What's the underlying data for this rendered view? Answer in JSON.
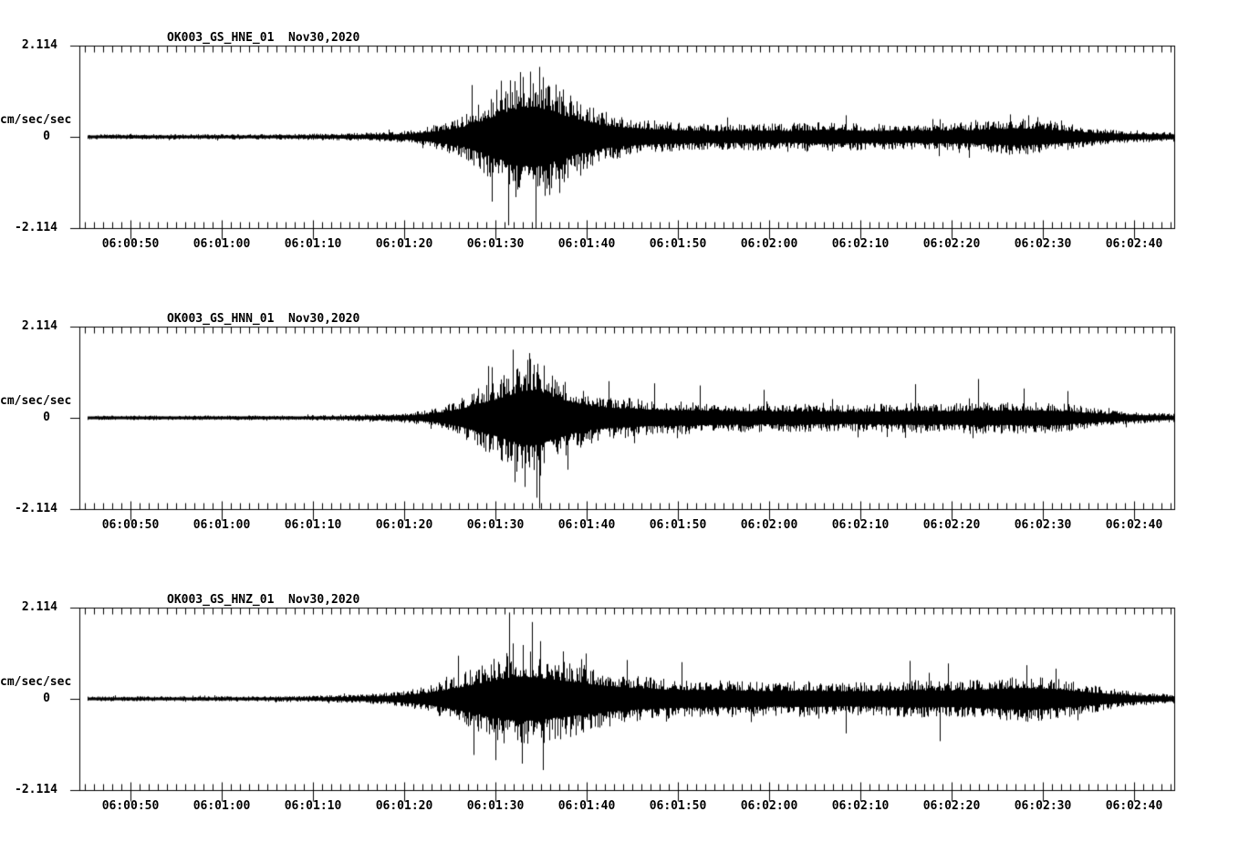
{
  "page": {
    "background": "#ffffff",
    "trace_color": "#000000",
    "axis_color": "#000000"
  },
  "chart_data": [
    {
      "type": "line",
      "title": "OK003_GS_HNE_01  Nov30,2020",
      "ylabel": "cm/sec/sec",
      "ytick_labels": [
        "2.114",
        "0",
        "-2.114"
      ],
      "ylim": [
        -2.114,
        2.114
      ],
      "x_start": "06:00:44",
      "x_end": "06:02:44",
      "x_minor_tick_sec": 1,
      "x_major_tick_sec": 10,
      "xtick_labels": [
        "06:00:50",
        "06:01:00",
        "06:01:10",
        "06:01:20",
        "06:01:30",
        "06:01:40",
        "06:01:50",
        "06:02:00",
        "06:02:10",
        "06:02:20",
        "06:02:30",
        "06:02:40"
      ],
      "seed": 101,
      "envelope": [
        [
          0,
          0.06
        ],
        [
          22,
          0.065
        ],
        [
          28,
          0.08
        ],
        [
          32,
          0.1
        ],
        [
          36,
          0.14
        ],
        [
          39,
          0.28
        ],
        [
          42,
          0.5
        ],
        [
          44,
          0.8
        ],
        [
          46,
          1.15
        ],
        [
          48,
          1.45
        ],
        [
          50,
          1.55
        ],
        [
          51.5,
          1.35
        ],
        [
          53,
          1.1
        ],
        [
          55,
          0.85
        ],
        [
          57,
          0.62
        ],
        [
          59,
          0.5
        ],
        [
          62,
          0.4
        ],
        [
          66,
          0.33
        ],
        [
          70,
          0.3
        ],
        [
          74,
          0.32
        ],
        [
          78,
          0.3
        ],
        [
          82,
          0.36
        ],
        [
          85,
          0.32
        ],
        [
          89,
          0.3
        ],
        [
          93,
          0.31
        ],
        [
          97,
          0.34
        ],
        [
          100,
          0.38
        ],
        [
          103,
          0.44
        ],
        [
          105,
          0.4
        ],
        [
          108,
          0.32
        ],
        [
          110,
          0.24
        ],
        [
          113,
          0.17
        ],
        [
          116,
          0.13
        ],
        [
          120,
          0.11
        ]
      ],
      "spikes": [
        [
          47,
          -2.05
        ],
        [
          50,
          -2.114
        ],
        [
          50.4,
          1.62
        ],
        [
          48.3,
          1.5
        ],
        [
          45.2,
          -1.5
        ],
        [
          52.6,
          -1.3
        ],
        [
          43,
          1.2
        ],
        [
          46.2,
          1.3
        ],
        [
          84,
          0.5
        ],
        [
          102,
          0.52
        ],
        [
          104,
          0.5
        ],
        [
          71,
          0.45
        ]
      ]
    },
    {
      "type": "line",
      "title": "OK003_GS_HNN_01  Nov30,2020",
      "ylabel": "cm/sec/sec",
      "ytick_labels": [
        "2.114",
        "0",
        "-2.114"
      ],
      "ylim": [
        -2.114,
        2.114
      ],
      "x_start": "06:00:44",
      "x_end": "06:02:44",
      "x_minor_tick_sec": 1,
      "x_major_tick_sec": 10,
      "xtick_labels": [
        "06:00:50",
        "06:01:00",
        "06:01:10",
        "06:01:20",
        "06:01:30",
        "06:01:40",
        "06:01:50",
        "06:02:00",
        "06:02:10",
        "06:02:20",
        "06:02:30",
        "06:02:40"
      ],
      "seed": 202,
      "envelope": [
        [
          0,
          0.05
        ],
        [
          24,
          0.055
        ],
        [
          29,
          0.07
        ],
        [
          33,
          0.09
        ],
        [
          36,
          0.12
        ],
        [
          39,
          0.22
        ],
        [
          41,
          0.38
        ],
        [
          43,
          0.6
        ],
        [
          45,
          0.85
        ],
        [
          47,
          1.15
        ],
        [
          49,
          1.4
        ],
        [
          50.5,
          1.35
        ],
        [
          52,
          1.05
        ],
        [
          54,
          0.8
        ],
        [
          56,
          0.62
        ],
        [
          58,
          0.52
        ],
        [
          61,
          0.45
        ],
        [
          64,
          0.4
        ],
        [
          68,
          0.37
        ],
        [
          72,
          0.35
        ],
        [
          76,
          0.33
        ],
        [
          80,
          0.33
        ],
        [
          84,
          0.31
        ],
        [
          88,
          0.33
        ],
        [
          92,
          0.36
        ],
        [
          95,
          0.33
        ],
        [
          98,
          0.38
        ],
        [
          101,
          0.36
        ],
        [
          104,
          0.38
        ],
        [
          107,
          0.36
        ],
        [
          109,
          0.3
        ],
        [
          111,
          0.24
        ],
        [
          114,
          0.17
        ],
        [
          117,
          0.12
        ],
        [
          120,
          0.1
        ]
      ],
      "spikes": [
        [
          47.5,
          1.58
        ],
        [
          49.3,
          1.5
        ],
        [
          50.1,
          -1.85
        ],
        [
          50.4,
          -2.1
        ],
        [
          48.8,
          -1.6
        ],
        [
          44.8,
          1.2
        ],
        [
          53.5,
          -1.2
        ],
        [
          58,
          0.85
        ],
        [
          63,
          0.8
        ],
        [
          68,
          0.75
        ],
        [
          75,
          0.65
        ],
        [
          91.6,
          0.78
        ],
        [
          98.5,
          0.9
        ],
        [
          103.5,
          0.68
        ],
        [
          108.3,
          0.62
        ]
      ]
    },
    {
      "type": "line",
      "title": "OK003_GS_HNZ_01  Nov30,2020",
      "ylabel": "cm/sec/sec",
      "ytick_labels": [
        "2.114",
        "0",
        "-2.114"
      ],
      "ylim": [
        -2.114,
        2.114
      ],
      "x_start": "06:00:44",
      "x_end": "06:02:44",
      "x_minor_tick_sec": 1,
      "x_major_tick_sec": 10,
      "xtick_labels": [
        "06:00:50",
        "06:01:00",
        "06:01:10",
        "06:01:20",
        "06:01:30",
        "06:01:40",
        "06:01:50",
        "06:02:00",
        "06:02:10",
        "06:02:20",
        "06:02:30",
        "06:02:40"
      ],
      "seed": 303,
      "envelope": [
        [
          0,
          0.055
        ],
        [
          20,
          0.06
        ],
        [
          26,
          0.075
        ],
        [
          30,
          0.1
        ],
        [
          33,
          0.13
        ],
        [
          36,
          0.2
        ],
        [
          38,
          0.3
        ],
        [
          40,
          0.45
        ],
        [
          42,
          0.62
        ],
        [
          44,
          0.8
        ],
        [
          46,
          1.0
        ],
        [
          48,
          1.15
        ],
        [
          50,
          1.1
        ],
        [
          52,
          0.98
        ],
        [
          54,
          0.88
        ],
        [
          56,
          0.75
        ],
        [
          58,
          0.65
        ],
        [
          61,
          0.55
        ],
        [
          64,
          0.48
        ],
        [
          68,
          0.44
        ],
        [
          72,
          0.42
        ],
        [
          76,
          0.4
        ],
        [
          80,
          0.42
        ],
        [
          84,
          0.38
        ],
        [
          88,
          0.4
        ],
        [
          92,
          0.44
        ],
        [
          96,
          0.42
        ],
        [
          99,
          0.46
        ],
        [
          102,
          0.52
        ],
        [
          104,
          0.55
        ],
        [
          106,
          0.5
        ],
        [
          108,
          0.44
        ],
        [
          110,
          0.36
        ],
        [
          112,
          0.28
        ],
        [
          115,
          0.18
        ],
        [
          118,
          0.13
        ],
        [
          120,
          0.11
        ]
      ],
      "spikes": [
        [
          47.1,
          2.0
        ],
        [
          49.6,
          1.78
        ],
        [
          48.5,
          -1.5
        ],
        [
          50.8,
          -1.65
        ],
        [
          45.6,
          -1.42
        ],
        [
          43.2,
          -1.3
        ],
        [
          41.5,
          1.0
        ],
        [
          53,
          1.1
        ],
        [
          55.5,
          1.05
        ],
        [
          60,
          0.9
        ],
        [
          66,
          0.85
        ],
        [
          84,
          -0.8
        ],
        [
          91,
          0.88
        ],
        [
          94.3,
          -0.98
        ],
        [
          95.2,
          0.82
        ],
        [
          103.8,
          0.78
        ],
        [
          107,
          0.7
        ]
      ]
    }
  ]
}
